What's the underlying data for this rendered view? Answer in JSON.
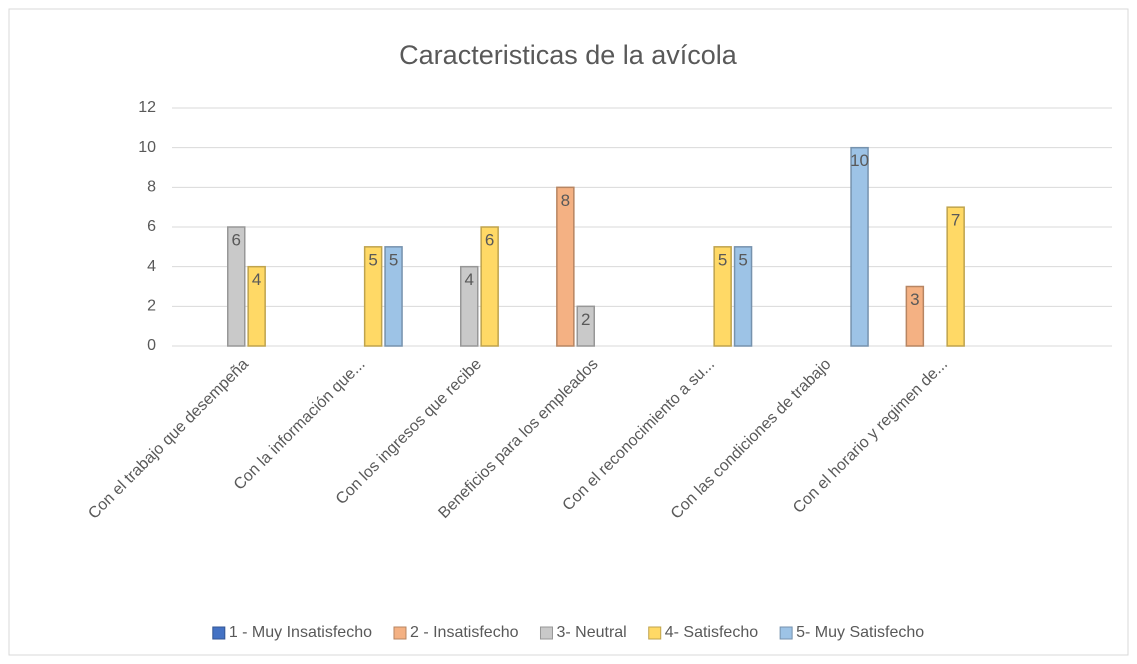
{
  "chart_data": {
    "type": "bar",
    "title": "Caracteristicas de la avícola",
    "categories": [
      "Con el trabajo que desempeña",
      "Con la información que...",
      "Con los ingresos que recibe",
      "Beneficios para los empleados",
      "Con el reconocimiento a su...",
      "Con las condiciones de trabajo",
      "Con el horario y regimen de...",
      null
    ],
    "series": [
      {
        "name": "1 - Muy Insatisfecho",
        "color": "#4472c4",
        "values": [
          null,
          null,
          null,
          null,
          null,
          null,
          null,
          null
        ]
      },
      {
        "name": "2 - Insatisfecho",
        "color": "#f4b183",
        "values": [
          null,
          null,
          null,
          8,
          null,
          null,
          3,
          null
        ]
      },
      {
        "name": "3- Neutral",
        "color": "#c9c9c9",
        "values": [
          6,
          null,
          4,
          2,
          null,
          null,
          null,
          null
        ]
      },
      {
        "name": "4- Satisfecho",
        "color": "#ffd966",
        "values": [
          4,
          5,
          6,
          null,
          5,
          null,
          7,
          null
        ]
      },
      {
        "name": "5- Muy Satisfecho",
        "color": "#9dc3e6",
        "values": [
          null,
          5,
          null,
          null,
          5,
          10,
          null,
          null
        ]
      }
    ],
    "ylim": [
      0,
      12
    ],
    "yticks": [
      0,
      2,
      4,
      6,
      8,
      10,
      12
    ],
    "grid": true,
    "legend": "bottom"
  }
}
